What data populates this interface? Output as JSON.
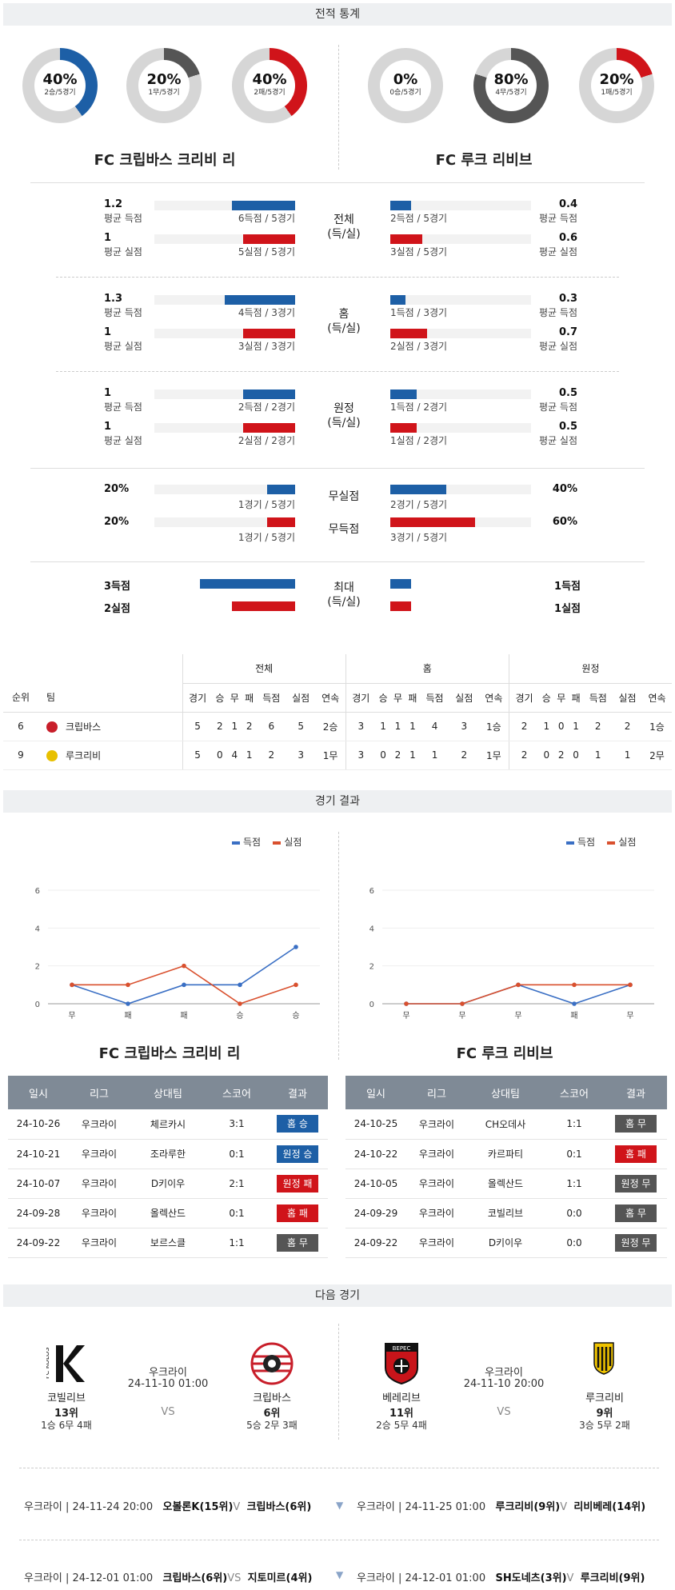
{
  "sections": {
    "stats": "전적 통계",
    "results": "경기 결과",
    "next": "다음 경기"
  },
  "teams": {
    "home": "FC 크립바스 크리비 리",
    "away": "FC 루크 리비브"
  },
  "donuts": [
    {
      "pct": "40%",
      "sub": "2승/5경기",
      "color": "#1d5fa6",
      "value": 0.4
    },
    {
      "pct": "20%",
      "sub": "1무/5경기",
      "color": "#555555",
      "value": 0.2
    },
    {
      "pct": "40%",
      "sub": "2패/5경기",
      "color": "#d0141a",
      "value": 0.4
    },
    {
      "pct": "0%",
      "sub": "0승/5경기",
      "color": "#1d5fa6",
      "value": 0.0
    },
    {
      "pct": "80%",
      "sub": "4무/5경기",
      "color": "#555555",
      "value": 0.8
    },
    {
      "pct": "20%",
      "sub": "1패/5경기",
      "color": "#d0141a",
      "value": 0.2
    }
  ],
  "groups": [
    {
      "label": "전체\n(득/실)",
      "home_score": {
        "val": "1.2",
        "lbl": "평균 득점",
        "cap": "6득점 / 5경기",
        "frac": 0.45
      },
      "home_concede": {
        "val": "1",
        "lbl": "평균 실점",
        "cap": "5실점 / 5경기",
        "frac": 0.37
      },
      "away_score": {
        "val": "0.4",
        "lbl": "평균 득점",
        "cap": "2득점 / 5경기",
        "frac": 0.15
      },
      "away_concede": {
        "val": "0.6",
        "lbl": "평균 실점",
        "cap": "3실점 / 5경기",
        "frac": 0.23
      }
    },
    {
      "label": "홈\n(득/실)",
      "home_score": {
        "val": "1.3",
        "lbl": "평균 득점",
        "cap": "4득점 / 3경기",
        "frac": 0.5
      },
      "home_concede": {
        "val": "1",
        "lbl": "평균 실점",
        "cap": "3실점 / 3경기",
        "frac": 0.37
      },
      "away_score": {
        "val": "0.3",
        "lbl": "평균 득점",
        "cap": "1득점 / 3경기",
        "frac": 0.11
      },
      "away_concede": {
        "val": "0.7",
        "lbl": "평균 실점",
        "cap": "2실점 / 3경기",
        "frac": 0.26
      }
    },
    {
      "label": "원정\n(득/실)",
      "home_score": {
        "val": "1",
        "lbl": "평균 득점",
        "cap": "2득점 / 2경기",
        "frac": 0.37
      },
      "home_concede": {
        "val": "1",
        "lbl": "평균 실점",
        "cap": "2실점 / 2경기",
        "frac": 0.37
      },
      "away_score": {
        "val": "0.5",
        "lbl": "평균 득점",
        "cap": "1득점 / 2경기",
        "frac": 0.19
      },
      "away_concede": {
        "val": "0.5",
        "lbl": "평균 실점",
        "cap": "1실점 / 2경기",
        "frac": 0.19
      }
    }
  ],
  "cleansheets": {
    "clean_label": "무실점",
    "fail_label": "무득점",
    "home_clean": {
      "val": "20%",
      "cap": "1경기 / 5경기",
      "frac": 0.2
    },
    "home_fail": {
      "val": "20%",
      "cap": "1경기 / 5경기",
      "frac": 0.2
    },
    "away_clean": {
      "val": "40%",
      "cap": "2경기 / 5경기",
      "frac": 0.4
    },
    "away_fail": {
      "val": "60%",
      "cap": "3경기 / 5경기",
      "frac": 0.6
    }
  },
  "max": {
    "label": "최대\n(득/실)",
    "home_score": {
      "val": "3득점",
      "frac": 0.75
    },
    "home_concede": {
      "val": "2실점",
      "frac": 0.5
    },
    "away_score": {
      "val": "1득점",
      "frac": 0.25
    },
    "away_concede": {
      "val": "1실점",
      "frac": 0.25
    }
  },
  "standings": {
    "groups": [
      "전체",
      "홈",
      "원정"
    ],
    "rank_h": "순위",
    "team_h": "팀",
    "cols": [
      "경기",
      "승",
      "무",
      "패",
      "득점",
      "실점",
      "연속"
    ],
    "rows": [
      {
        "rank": "6",
        "team": "크립바스",
        "logo": "#c81e2a",
        "all": [
          "5",
          "2",
          "1",
          "2",
          "6",
          "5",
          "2승"
        ],
        "home": [
          "3",
          "1",
          "1",
          "1",
          "4",
          "3",
          "1승"
        ],
        "away": [
          "2",
          "1",
          "0",
          "1",
          "2",
          "2",
          "1승"
        ]
      },
      {
        "rank": "9",
        "team": "루크리비",
        "logo": "#e8c000",
        "all": [
          "5",
          "0",
          "4",
          "1",
          "2",
          "3",
          "1무"
        ],
        "home": [
          "3",
          "0",
          "2",
          "1",
          "1",
          "2",
          "1무"
        ],
        "away": [
          "2",
          "0",
          "2",
          "0",
          "1",
          "1",
          "2무"
        ]
      }
    ]
  },
  "legend": {
    "score": "득점",
    "concede": "실점",
    "score_color": "#3a6fc4",
    "concede_color": "#d9502e"
  },
  "chart_data": [
    {
      "type": "line",
      "categories": [
        "무",
        "패",
        "패",
        "승",
        "승"
      ],
      "ylim": [
        0,
        6
      ],
      "yticks": [
        "0",
        "2",
        "4",
        "6"
      ],
      "series": [
        {
          "name": "득점",
          "values": [
            1,
            0,
            1,
            1,
            3
          ]
        },
        {
          "name": "실점",
          "values": [
            1,
            1,
            2,
            0,
            1
          ]
        }
      ]
    },
    {
      "type": "line",
      "categories": [
        "무",
        "무",
        "무",
        "패",
        "무"
      ],
      "ylim": [
        0,
        6
      ],
      "yticks": [
        "0",
        "2",
        "4",
        "6"
      ],
      "series": [
        {
          "name": "득점",
          "values": [
            0,
            0,
            1,
            0,
            1
          ]
        },
        {
          "name": "실점",
          "values": [
            0,
            0,
            1,
            1,
            1
          ]
        }
      ]
    }
  ],
  "results_headers": [
    "일시",
    "리그",
    "상대팀",
    "스코어",
    "결과"
  ],
  "results_home": [
    {
      "date": "24-10-26",
      "league": "우크라이",
      "opp": "체르카시",
      "score": "3:1",
      "result": "홈 승",
      "color": "blue"
    },
    {
      "date": "24-10-21",
      "league": "우크라이",
      "opp": "조라루한",
      "score": "0:1",
      "result": "원정 승",
      "color": "blue"
    },
    {
      "date": "24-10-07",
      "league": "우크라이",
      "opp": "D키이우",
      "score": "2:1",
      "result": "원정 패",
      "color": "red"
    },
    {
      "date": "24-09-28",
      "league": "우크라이",
      "opp": "올렉산드",
      "score": "0:1",
      "result": "홈 패",
      "color": "red"
    },
    {
      "date": "24-09-22",
      "league": "우크라이",
      "opp": "보르스클",
      "score": "1:1",
      "result": "홈 무",
      "color": "gray"
    }
  ],
  "results_away": [
    {
      "date": "24-10-25",
      "league": "우크라이",
      "opp": "CH오데사",
      "score": "1:1",
      "result": "홈 무",
      "color": "gray"
    },
    {
      "date": "24-10-22",
      "league": "우크라이",
      "opp": "카르파티",
      "score": "0:1",
      "result": "홈 패",
      "color": "red"
    },
    {
      "date": "24-10-05",
      "league": "우크라이",
      "opp": "올렉산드",
      "score": "1:1",
      "result": "원정 무",
      "color": "gray"
    },
    {
      "date": "24-09-29",
      "league": "우크라이",
      "opp": "코빌리브",
      "score": "0:0",
      "result": "홈 무",
      "color": "gray"
    },
    {
      "date": "24-09-22",
      "league": "우크라이",
      "opp": "D키이우",
      "score": "0:0",
      "result": "원정 무",
      "color": "gray"
    }
  ],
  "next": {
    "left": {
      "league": "우크라이",
      "datetime": "24-11-10 01:00",
      "vs": "VS",
      "home": {
        "name": "코빌리브",
        "rank": "13위",
        "record": "1승 6무 4패",
        "logo_text": "K"
      },
      "away": {
        "name": "크립바스",
        "rank": "6위",
        "record": "5승 2무 3패"
      }
    },
    "right": {
      "league": "우크라이",
      "datetime": "24-11-10 20:00",
      "vs": "VS",
      "home": {
        "name": "베레리브",
        "rank": "11위",
        "record": "2승 5무 4패",
        "logo_text": "ВЕРЕС"
      },
      "away": {
        "name": "루크리비",
        "rank": "9위",
        "record": "3승 5무 2패"
      }
    }
  },
  "fixtures": [
    {
      "left": "우크라이 | 24-11-24 20:00",
      "home": "오볼론K(15위)",
      "v": "V",
      "away": "크립바스(6위)"
    },
    {
      "left": "우크라이 | 24-11-25 01:00",
      "home": "루크리비(9위)",
      "v": "V",
      "away": "리비베레(14위)"
    },
    {
      "left": "우크라이 | 24-12-01 01:00",
      "home": "크립바스(6위)",
      "v": "VS",
      "away": "지토미르(4위)"
    },
    {
      "left": "우크라이 | 24-12-01 01:00",
      "home": "SH도네츠(3위)",
      "v": "V",
      "away": "루크리비(9위)"
    }
  ]
}
